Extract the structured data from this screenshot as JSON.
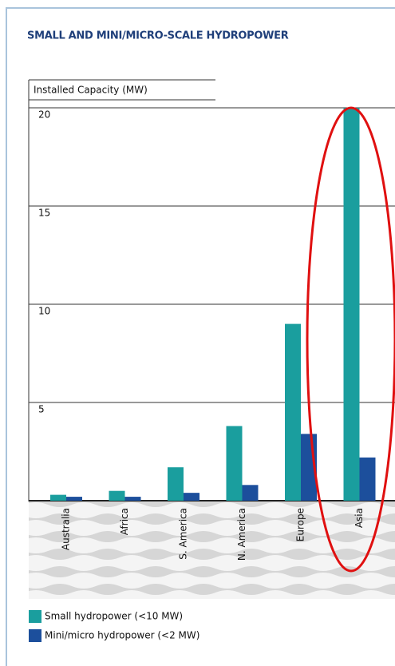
{
  "chart_data": {
    "type": "bar",
    "title": "SMALL AND MINI/MICRO-SCALE HYDROPOWER",
    "y_label": "Installed Capacity (MW)",
    "categories": [
      "Australia",
      "Africa",
      "S. America",
      "N. America",
      "Europe",
      "Asia"
    ],
    "series": [
      {
        "name": "Small hydropower (<10 MW)",
        "color": "#1a9e9e",
        "values": [
          0.3,
          0.5,
          1.7,
          3.8,
          9,
          20
        ]
      },
      {
        "name": "Mini/micro hydropower (<2 MW)",
        "color": "#1c4f9c",
        "values": [
          0.2,
          0.2,
          0.4,
          0.8,
          3.4,
          2.2
        ]
      }
    ],
    "ylim": [
      0,
      20
    ],
    "yticks": [
      5,
      10,
      15,
      20
    ],
    "grid": true
  }
}
